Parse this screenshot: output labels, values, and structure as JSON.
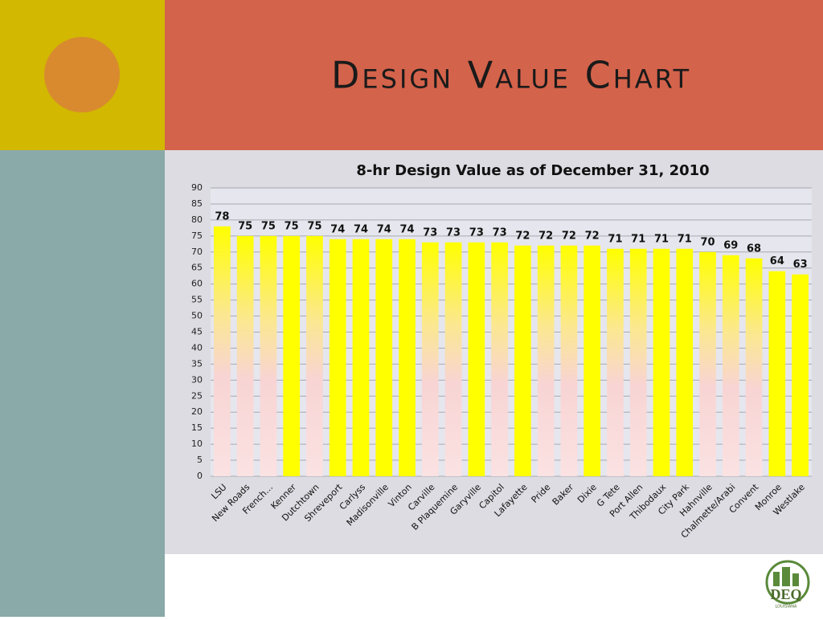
{
  "slide": {
    "title": "Design Value Chart"
  },
  "logo": {
    "text": "DEQ",
    "subtext": "LOUISIANA"
  },
  "chart_data": {
    "type": "bar",
    "title": "8-hr Design Value as of December 31, 2010",
    "categories": [
      "LSU",
      "New Roads",
      "French…",
      "Kenner",
      "Dutchtown",
      "Shreveport",
      "Carlyss",
      "Madisonville",
      "Vinton",
      "Carville",
      "B Plaquemine",
      "Garyville",
      "Capitol",
      "Lafayette",
      "Pride",
      "Baker",
      "Dixie",
      "G Tete",
      "Port Allen",
      "Thibodaux",
      "City Park",
      "Hahnville",
      "Chalmette/Arabi",
      "Convent",
      "Monroe",
      "Westlake"
    ],
    "values": [
      78,
      75,
      75,
      75,
      75,
      74,
      74,
      74,
      74,
      73,
      73,
      73,
      73,
      72,
      72,
      72,
      72,
      71,
      71,
      71,
      71,
      70,
      69,
      68,
      64,
      63
    ],
    "bar_fill": [
      "gradient",
      "gradient",
      "gradient",
      "solid",
      "gradient",
      "solid",
      "solid",
      "solid",
      "solid",
      "gradient",
      "gradient",
      "solid",
      "gradient",
      "solid",
      "gradient",
      "gradient",
      "solid",
      "gradient",
      "gradient",
      "solid",
      "solid",
      "gradient",
      "gradient",
      "gradient",
      "solid",
      "solid"
    ],
    "color": "#ffff00",
    "ylim": [
      0,
      90
    ],
    "yticks": [
      0,
      5,
      10,
      15,
      20,
      25,
      30,
      35,
      40,
      45,
      50,
      55,
      60,
      65,
      70,
      75,
      80,
      85,
      90
    ],
    "grid": true
  }
}
